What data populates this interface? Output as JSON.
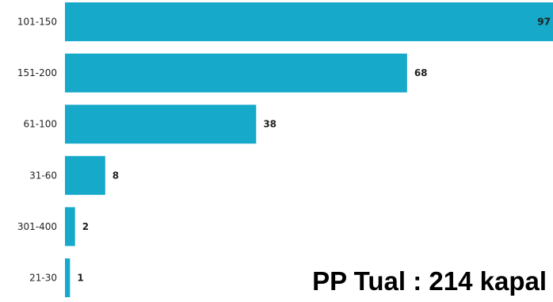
{
  "caption": "PP Tual : 214 kapal",
  "colors": {
    "bar": "#16a9c9",
    "text": "#1f1f1f"
  },
  "chart_data": {
    "type": "bar",
    "orientation": "horizontal",
    "categories": [
      "101-150",
      "151-200",
      "61-100",
      "31-60",
      "301-400",
      "21-30"
    ],
    "values": [
      97,
      68,
      38,
      8,
      2,
      1
    ],
    "xlim": [
      0,
      97
    ],
    "grid": false,
    "legend": "none"
  }
}
